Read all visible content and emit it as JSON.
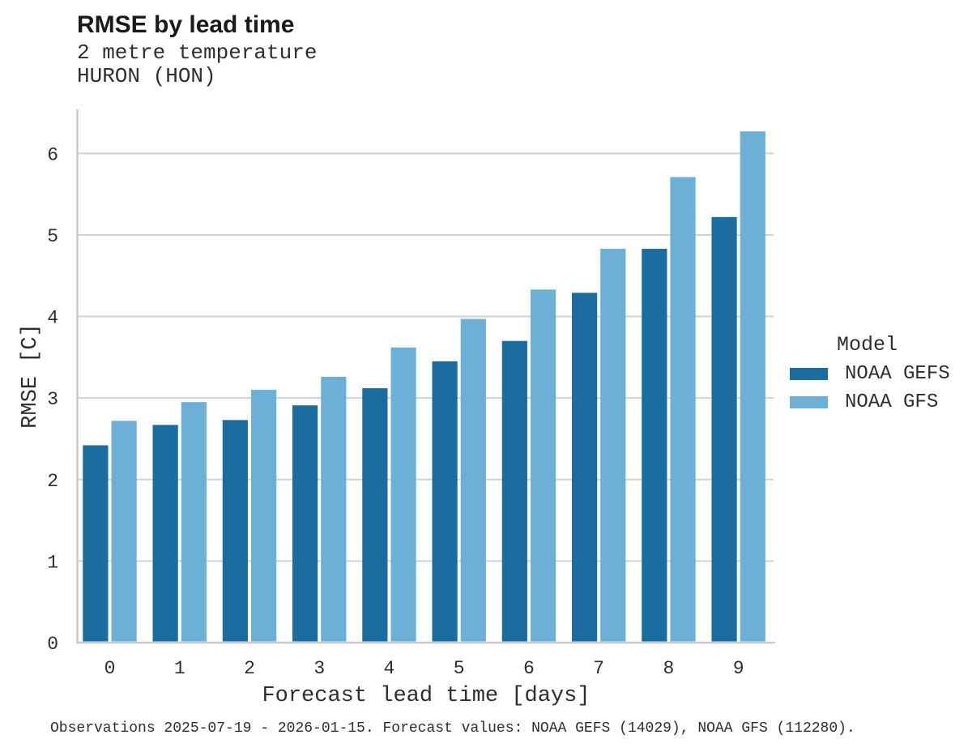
{
  "header": {
    "title": "RMSE by lead time",
    "subtitle_variable": "2 metre temperature",
    "subtitle_station": "HURON (HON)"
  },
  "axes": {
    "x_title": "Forecast lead time [days]",
    "y_title": "RMSE [C]",
    "x_tick_labels": [
      "0",
      "1",
      "2",
      "3",
      "4",
      "5",
      "6",
      "7",
      "8",
      "9"
    ],
    "y_tick_labels": [
      "0",
      "1",
      "2",
      "3",
      "4",
      "5",
      "6"
    ]
  },
  "legend": {
    "title": "Model",
    "items": [
      {
        "label": "NOAA GEFS",
        "color": "#1a6d9e"
      },
      {
        "label": "NOAA GFS",
        "color": "#6cb0d8"
      }
    ]
  },
  "footer": {
    "note": "Observations 2025-07-19 - 2026-01-15. Forecast values: NOAA GEFS (14029), NOAA GFS (112280)."
  },
  "colors": {
    "gefs_bar": "#1a6d9e",
    "gfs_bar": "#6cb0d8",
    "axis_line": "#c9c9c9",
    "gridline": "#d2d2d2",
    "text": "#2e2e2e"
  },
  "chart_data": {
    "type": "bar",
    "title": "RMSE by lead time",
    "subtitle": [
      "2 metre temperature",
      "HURON (HON)"
    ],
    "xlabel": "Forecast lead time [days]",
    "ylabel": "RMSE [C]",
    "categories": [
      0,
      1,
      2,
      3,
      4,
      5,
      6,
      7,
      8,
      9
    ],
    "series": [
      {
        "name": "NOAA GEFS",
        "color": "#1a6d9e",
        "values": [
          2.42,
          2.67,
          2.73,
          2.91,
          3.12,
          3.45,
          3.7,
          4.29,
          4.83,
          5.22
        ]
      },
      {
        "name": "NOAA GFS",
        "color": "#6cb0d8",
        "values": [
          2.72,
          2.95,
          3.1,
          3.26,
          3.62,
          3.97,
          4.33,
          4.83,
          5.71,
          6.27
        ]
      }
    ],
    "ylim": [
      0,
      6.54
    ],
    "yticks": [
      0,
      1,
      2,
      3,
      4,
      5,
      6
    ],
    "grid": true,
    "legend_title": "Model",
    "legend_position": "right",
    "note": "Observations 2025-07-19 - 2026-01-15. Forecast values: NOAA GEFS (14029), NOAA GFS (112280)."
  }
}
